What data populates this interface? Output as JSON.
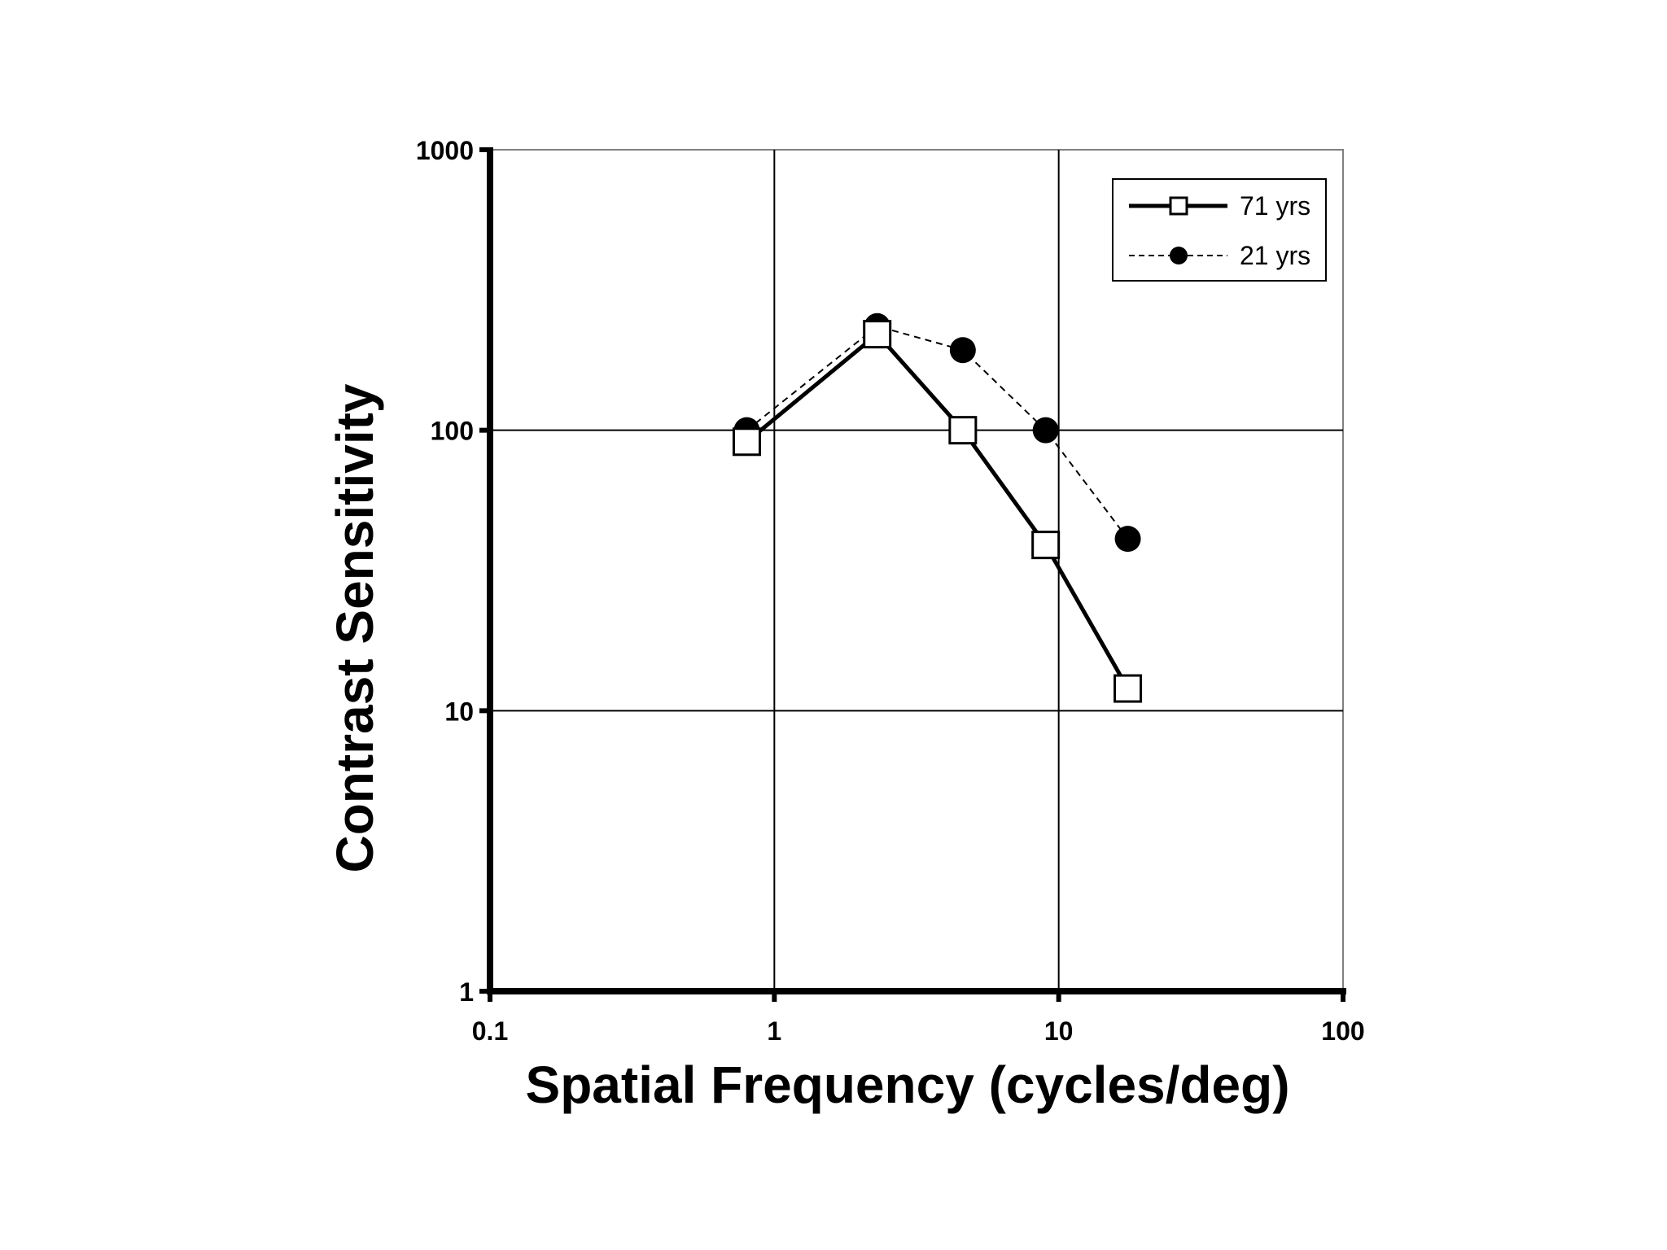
{
  "chart_data": {
    "type": "line",
    "title": "",
    "xlabel": "Spatial Frequency (cycles/deg)",
    "ylabel": "Contrast Sensitivity",
    "x_scale": "log",
    "y_scale": "log",
    "xlim": [
      0.1,
      100
    ],
    "ylim": [
      1,
      1000
    ],
    "x_ticks": [
      "0.1",
      "1",
      "10",
      "100"
    ],
    "y_ticks": [
      "1",
      "10",
      "100",
      "1000"
    ],
    "grid": true,
    "legend_position": "top-right",
    "series": [
      {
        "name": "71 yrs",
        "marker": "open-square",
        "line_style": "solid",
        "color": "#000000",
        "points": [
          {
            "x": 0.8,
            "y": 91
          },
          {
            "x": 2.3,
            "y": 220
          },
          {
            "x": 4.6,
            "y": 100
          },
          {
            "x": 9.0,
            "y": 39
          },
          {
            "x": 17.5,
            "y": 12
          }
        ]
      },
      {
        "name": "21 yrs",
        "marker": "filled-circle",
        "line_style": "dashed",
        "color": "#000000",
        "points": [
          {
            "x": 0.8,
            "y": 100
          },
          {
            "x": 2.3,
            "y": 235
          },
          {
            "x": 4.6,
            "y": 193
          },
          {
            "x": 9.0,
            "y": 100
          },
          {
            "x": 17.5,
            "y": 41
          }
        ]
      }
    ]
  }
}
